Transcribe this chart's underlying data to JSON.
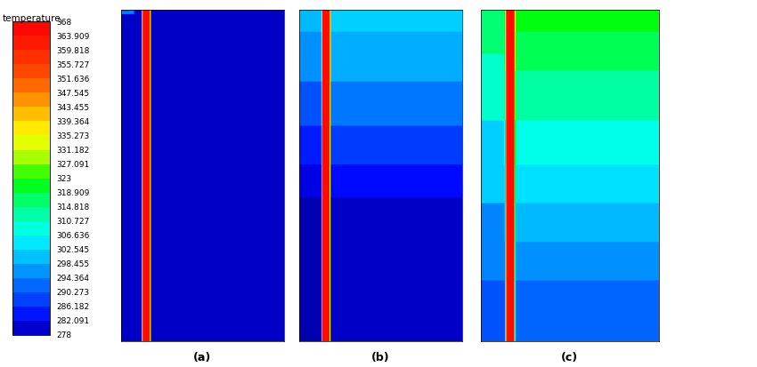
{
  "temp_min": 278,
  "temp_max": 368,
  "colorbar_labels": [
    "368",
    "363.909",
    "359.818",
    "355.727",
    "351.636",
    "347.545",
    "343.455",
    "339.364",
    "335.273",
    "331.182",
    "327.091",
    "323",
    "318.909",
    "314.818",
    "310.727",
    "306.636",
    "302.545",
    "298.455",
    "294.364",
    "290.273",
    "286.182",
    "282.091",
    "278"
  ],
  "fig_width": 8.5,
  "fig_height": 4.14,
  "panel_labels": [
    "(a)",
    "(b)",
    "(c)"
  ]
}
